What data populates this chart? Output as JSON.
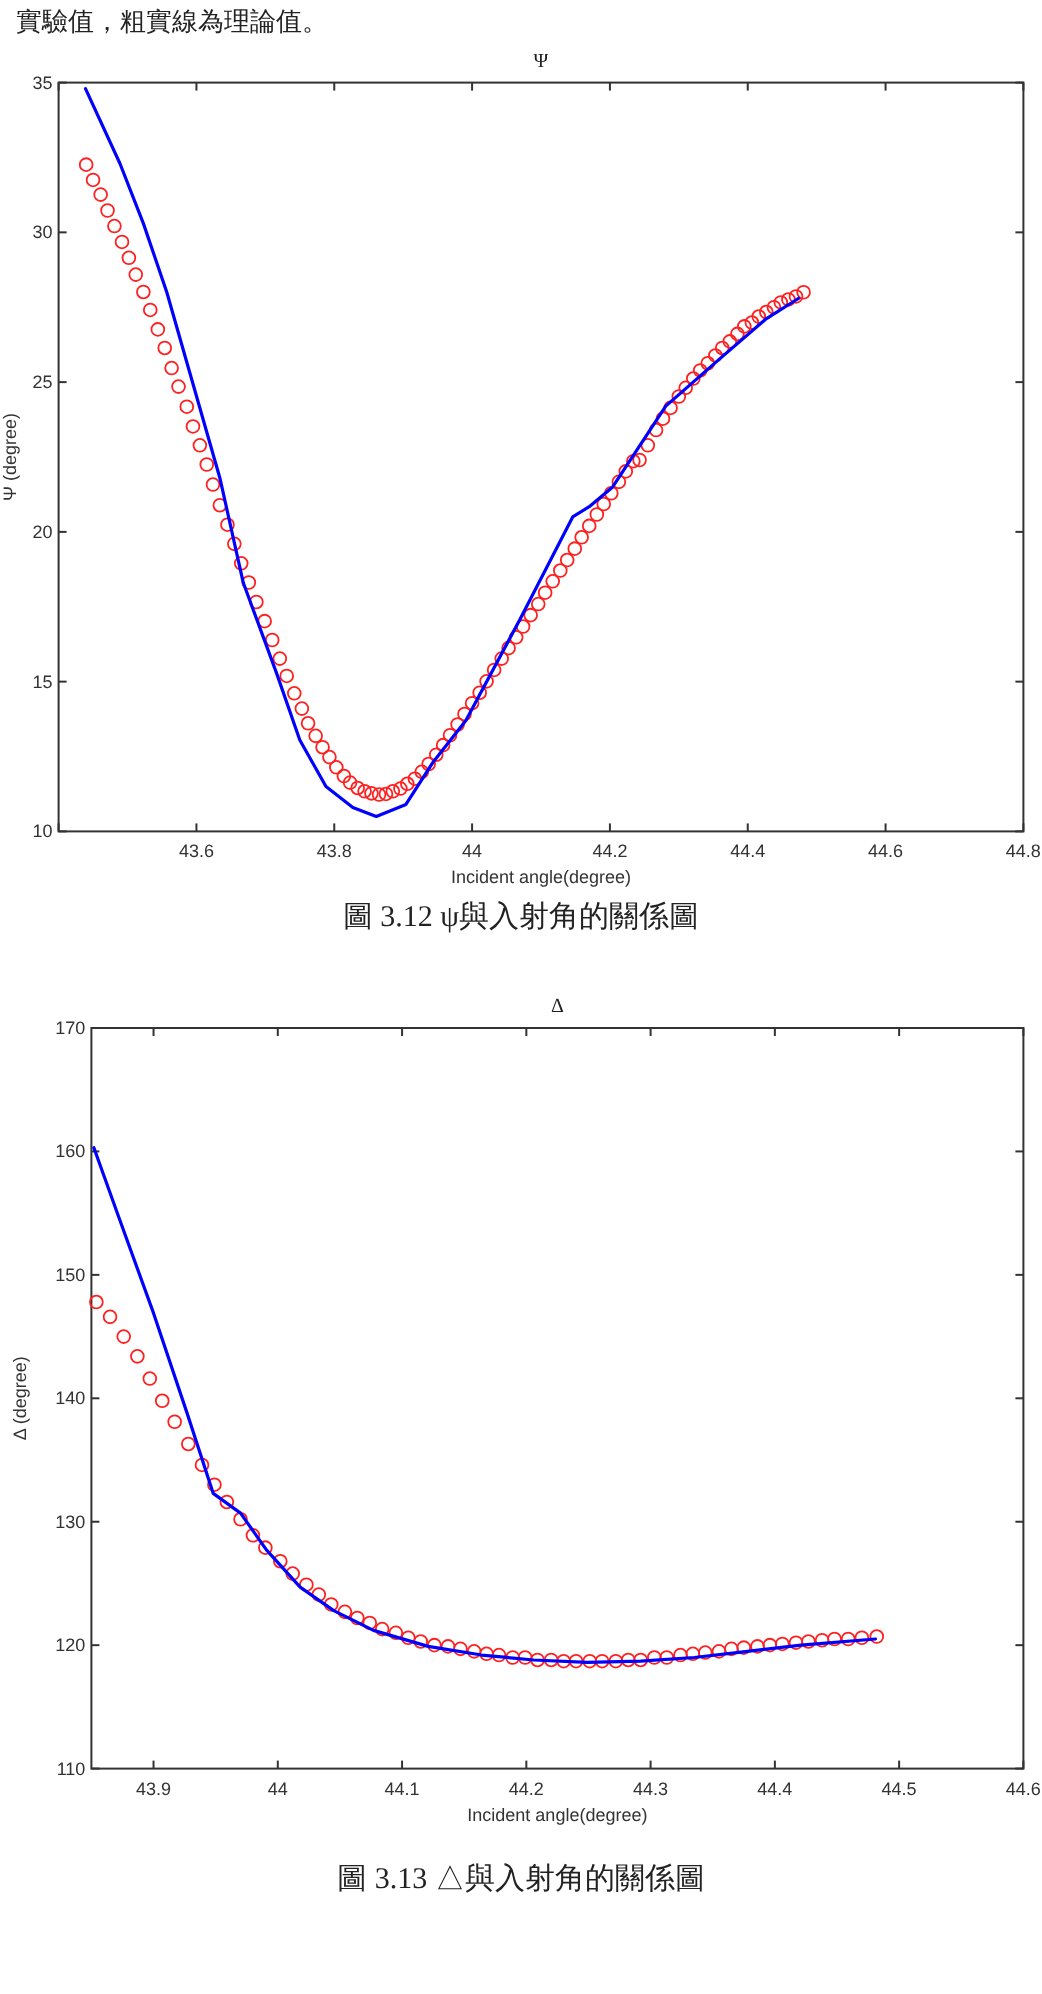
{
  "chart_data": [
    {
      "type": "scatter",
      "title": "Ψ",
      "xlabel": "Incident angle(degree)",
      "ylabel": "Ψ (degree)",
      "annotations": [
        "實驗值，粗實線為理論值。",
        "圖 3.12 ψ與入射角的關係圖"
      ],
      "xlim": [
        43.4,
        44.8
      ],
      "xticks": [
        {
          "value": 43.4,
          "label": null
        },
        43.6,
        43.8,
        44,
        44.2,
        44.4,
        44.6,
        44.8
      ],
      "ylim": [
        10,
        35
      ],
      "yticks": [
        10,
        15,
        20,
        25,
        30,
        35
      ],
      "series": [
        {
          "marker": "circle",
          "color": "#ff2020",
          "x": [
            43.44,
            43.45,
            43.461,
            43.471,
            43.481,
            43.492,
            43.502,
            43.512,
            43.523,
            43.533,
            43.544,
            43.554,
            43.564,
            43.574,
            43.586,
            43.595,
            43.605,
            43.615,
            43.624,
            43.634,
            43.645,
            43.655,
            43.665,
            43.676,
            43.687,
            43.699,
            43.71,
            43.721,
            43.731,
            43.742,
            43.753,
            43.762,
            43.773,
            43.783,
            43.793,
            43.803,
            43.814,
            43.823,
            43.834,
            43.844,
            43.854,
            43.865,
            43.875,
            43.885,
            43.896,
            43.906,
            43.917,
            43.927,
            43.937,
            43.948,
            43.958,
            43.968,
            43.979,
            43.989,
            44.0,
            44.011,
            44.021,
            44.032,
            44.043,
            44.053,
            44.064,
            44.074,
            44.085,
            44.096,
            44.106,
            44.117,
            44.128,
            44.138,
            44.149,
            44.159,
            44.17,
            44.181,
            44.191,
            44.202,
            44.213,
            44.223,
            44.234,
            44.243,
            44.255,
            44.267,
            44.277,
            44.288,
            44.3,
            44.31,
            44.321,
            44.331,
            44.342,
            44.353,
            44.363,
            44.374,
            44.385,
            44.395,
            44.406,
            44.416,
            44.427,
            44.438,
            44.448,
            44.459,
            44.47,
            44.481
          ],
          "values": [
            32.26,
            31.75,
            31.26,
            30.73,
            30.21,
            29.68,
            29.15,
            28.59,
            28.01,
            27.41,
            26.76,
            26.14,
            25.47,
            24.85,
            24.18,
            23.52,
            22.89,
            22.25,
            21.58,
            20.89,
            20.24,
            19.6,
            18.95,
            18.31,
            17.66,
            17.02,
            16.39,
            15.77,
            15.19,
            14.61,
            14.1,
            13.61,
            13.19,
            12.81,
            12.48,
            12.14,
            11.85,
            11.63,
            11.45,
            11.34,
            11.27,
            11.23,
            11.25,
            11.34,
            11.43,
            11.59,
            11.76,
            11.99,
            12.25,
            12.56,
            12.88,
            13.21,
            13.57,
            13.92,
            14.28,
            14.63,
            15.01,
            15.39,
            15.77,
            16.12,
            16.48,
            16.84,
            17.22,
            17.59,
            17.97,
            18.35,
            18.71,
            19.06,
            19.44,
            19.82,
            20.2,
            20.58,
            20.93,
            21.29,
            21.67,
            22.02,
            22.36,
            22.4,
            22.89,
            23.4,
            23.78,
            24.14,
            24.52,
            24.81,
            25.12,
            25.39,
            25.63,
            25.89,
            26.14,
            26.36,
            26.61,
            26.86,
            26.99,
            27.19,
            27.34,
            27.5,
            27.66,
            27.76,
            27.86,
            28.0
          ]
        },
        {
          "type": "line",
          "color": "#0000ff",
          "x": [
            43.439,
            43.489,
            43.523,
            43.557,
            43.634,
            43.668,
            43.716,
            43.75,
            43.788,
            43.827,
            43.861,
            43.904,
            43.943,
            43.991,
            44.069,
            44.146,
            44.17,
            44.204,
            44.281,
            44.358,
            44.426,
            44.474
          ],
          "values": [
            34.8,
            32.3,
            30.3,
            28.0,
            21.8,
            18.3,
            15.3,
            13.05,
            11.5,
            10.8,
            10.5,
            10.9,
            12.3,
            13.7,
            17.06,
            20.5,
            20.84,
            21.5,
            24.2,
            25.75,
            27.1,
            27.8
          ]
        }
      ]
    },
    {
      "type": "scatter",
      "title": "Δ",
      "xlabel": "Incident angle(degree)",
      "ylabel": "Δ (degree)",
      "annotations": [
        "圖 3.13 △與入射角的關係圖"
      ],
      "xlim": [
        43.85,
        44.6
      ],
      "xticks": [
        43.9,
        44,
        44.1,
        44.2,
        44.3,
        44.4,
        44.5,
        44.6
      ],
      "ylim": [
        110,
        170
      ],
      "yticks": [
        110,
        120,
        130,
        140,
        150,
        160,
        170
      ],
      "series": [
        {
          "marker": "circle",
          "color": "#ff2020",
          "x": [
            43.854,
            43.865,
            43.876,
            43.887,
            43.897,
            43.907,
            43.917,
            43.928,
            43.939,
            43.949,
            43.959,
            43.97,
            43.98,
            43.99,
            44.002,
            44.012,
            44.023,
            44.033,
            44.043,
            44.054,
            44.064,
            44.074,
            44.084,
            44.095,
            44.105,
            44.115,
            44.126,
            44.137,
            44.147,
            44.158,
            44.168,
            44.178,
            44.189,
            44.199,
            44.209,
            44.22,
            44.23,
            44.24,
            44.251,
            44.261,
            44.272,
            44.282,
            44.292,
            44.303,
            44.313,
            44.324,
            44.334,
            44.344,
            44.355,
            44.365,
            44.375,
            44.386,
            44.396,
            44.406,
            44.417,
            44.427,
            44.438,
            44.448,
            44.459,
            44.47,
            44.482
          ],
          "values": [
            147.8,
            146.6,
            145.0,
            143.4,
            141.6,
            139.8,
            138.1,
            136.3,
            134.6,
            133.0,
            131.6,
            130.2,
            128.9,
            127.9,
            126.8,
            125.8,
            124.9,
            124.1,
            123.3,
            122.7,
            122.2,
            121.8,
            121.3,
            121.0,
            120.6,
            120.3,
            120.0,
            119.9,
            119.7,
            119.5,
            119.3,
            119.2,
            119.0,
            119.0,
            118.8,
            118.8,
            118.7,
            118.7,
            118.7,
            118.7,
            118.7,
            118.8,
            118.8,
            119.0,
            119.0,
            119.2,
            119.3,
            119.4,
            119.5,
            119.7,
            119.8,
            119.9,
            120.0,
            120.1,
            120.2,
            120.3,
            120.4,
            120.5,
            120.5,
            120.6,
            120.7
          ]
        },
        {
          "type": "line",
          "color": "#0000ff",
          "x": [
            43.852,
            43.873,
            43.9,
            43.927,
            43.948,
            43.97,
            43.991,
            44.018,
            44.045,
            44.077,
            44.121,
            44.164,
            44.206,
            44.249,
            44.292,
            44.335,
            44.378,
            44.421,
            44.481
          ],
          "values": [
            160.3,
            154.4,
            146.9,
            138.8,
            132.3,
            130.7,
            127.7,
            124.7,
            122.8,
            121.2,
            119.9,
            119.2,
            118.8,
            118.6,
            118.7,
            119.0,
            119.5,
            120.0,
            120.5
          ]
        }
      ]
    }
  ]
}
